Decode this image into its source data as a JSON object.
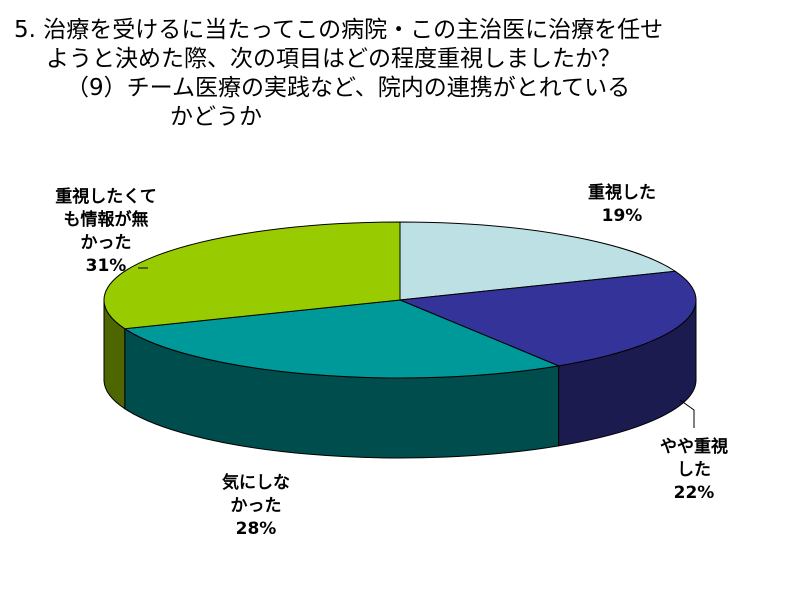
{
  "title_lines": [
    "5. 治療を受けるに当たってこの病院・この主治医に治療を任せ",
    "ようと決めた際、次の項目はどの程度重視しましたか？",
    "（9）チーム医療の実践など、院内の連携がとれている",
    "かどうか"
  ],
  "chart_data": {
    "type": "pie",
    "three_d": true,
    "slices": [
      {
        "label": [
          "重視した"
        ],
        "value": 19,
        "value_label": "19%",
        "color": "#bde0e4",
        "side_color": "#8fb2b6"
      },
      {
        "label": [
          "やや重視",
          "した"
        ],
        "value": 22,
        "value_label": "22%",
        "color": "#333399",
        "side_color": "#1b1b4f"
      },
      {
        "label": [
          "気にしな",
          "かった"
        ],
        "value": 28,
        "value_label": "28%",
        "color": "#009999",
        "side_color": "#004d4d"
      },
      {
        "label": [
          "重視したくて",
          "も情報が無",
          "かった"
        ],
        "value": 31,
        "value_label": "31%",
        "color": "#99cc00",
        "side_color": "#4d6600"
      }
    ]
  }
}
